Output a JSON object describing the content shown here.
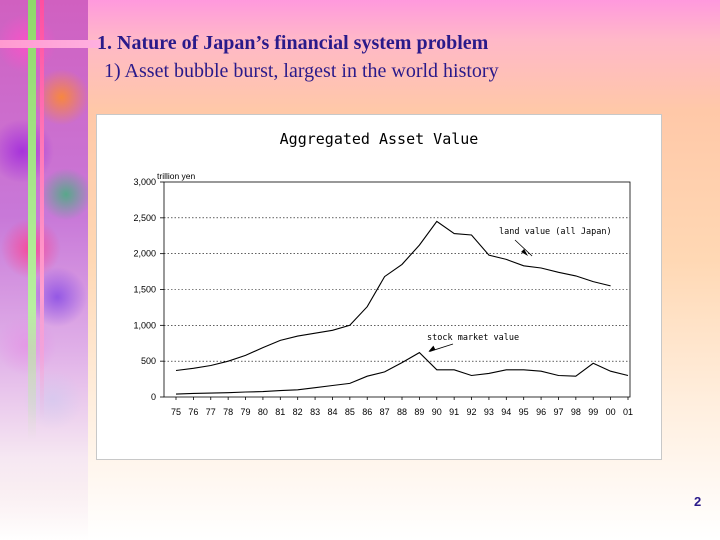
{
  "slide": {
    "heading": "1. Nature of Japan’s financial system problem",
    "subheading": "1)  Asset bubble burst, largest in the world history",
    "page_number": "2"
  },
  "chart_data": {
    "type": "line",
    "title": "Aggregated Asset Value",
    "ylabel": "trillion yen",
    "ylim": [
      0,
      3000
    ],
    "y_ticks": [
      "0",
      "500",
      "1,000",
      "1,500",
      "2,000",
      "2,500",
      "3,000"
    ],
    "categories": [
      "75",
      "76",
      "77",
      "78",
      "79",
      "80",
      "81",
      "82",
      "83",
      "84",
      "85",
      "86",
      "87",
      "88",
      "89",
      "90",
      "91",
      "92",
      "93",
      "94",
      "95",
      "96",
      "97",
      "98",
      "99",
      "00",
      "01"
    ],
    "grid": "horizontal dotted",
    "series": [
      {
        "name": "land value (all Japan)",
        "color": "#000000",
        "values": [
          370,
          400,
          440,
          500,
          580,
          690,
          790,
          850,
          890,
          930,
          1000,
          1260,
          1680,
          1850,
          2120,
          2450,
          2280,
          2260,
          1980,
          1920,
          1830,
          1800,
          1740,
          1690,
          1610,
          1550,
          null
        ]
      },
      {
        "name": "stock market value",
        "color": "#000000",
        "values": [
          40,
          50,
          55,
          60,
          70,
          75,
          90,
          100,
          130,
          160,
          190,
          290,
          350,
          480,
          620,
          380,
          380,
          300,
          330,
          380,
          380,
          360,
          300,
          290,
          470,
          360,
          300
        ]
      }
    ],
    "annotations": [
      {
        "text": "land value (all Japan)",
        "series": "land value (all Japan)"
      },
      {
        "text": "stock market value",
        "series": "stock market value"
      }
    ]
  }
}
